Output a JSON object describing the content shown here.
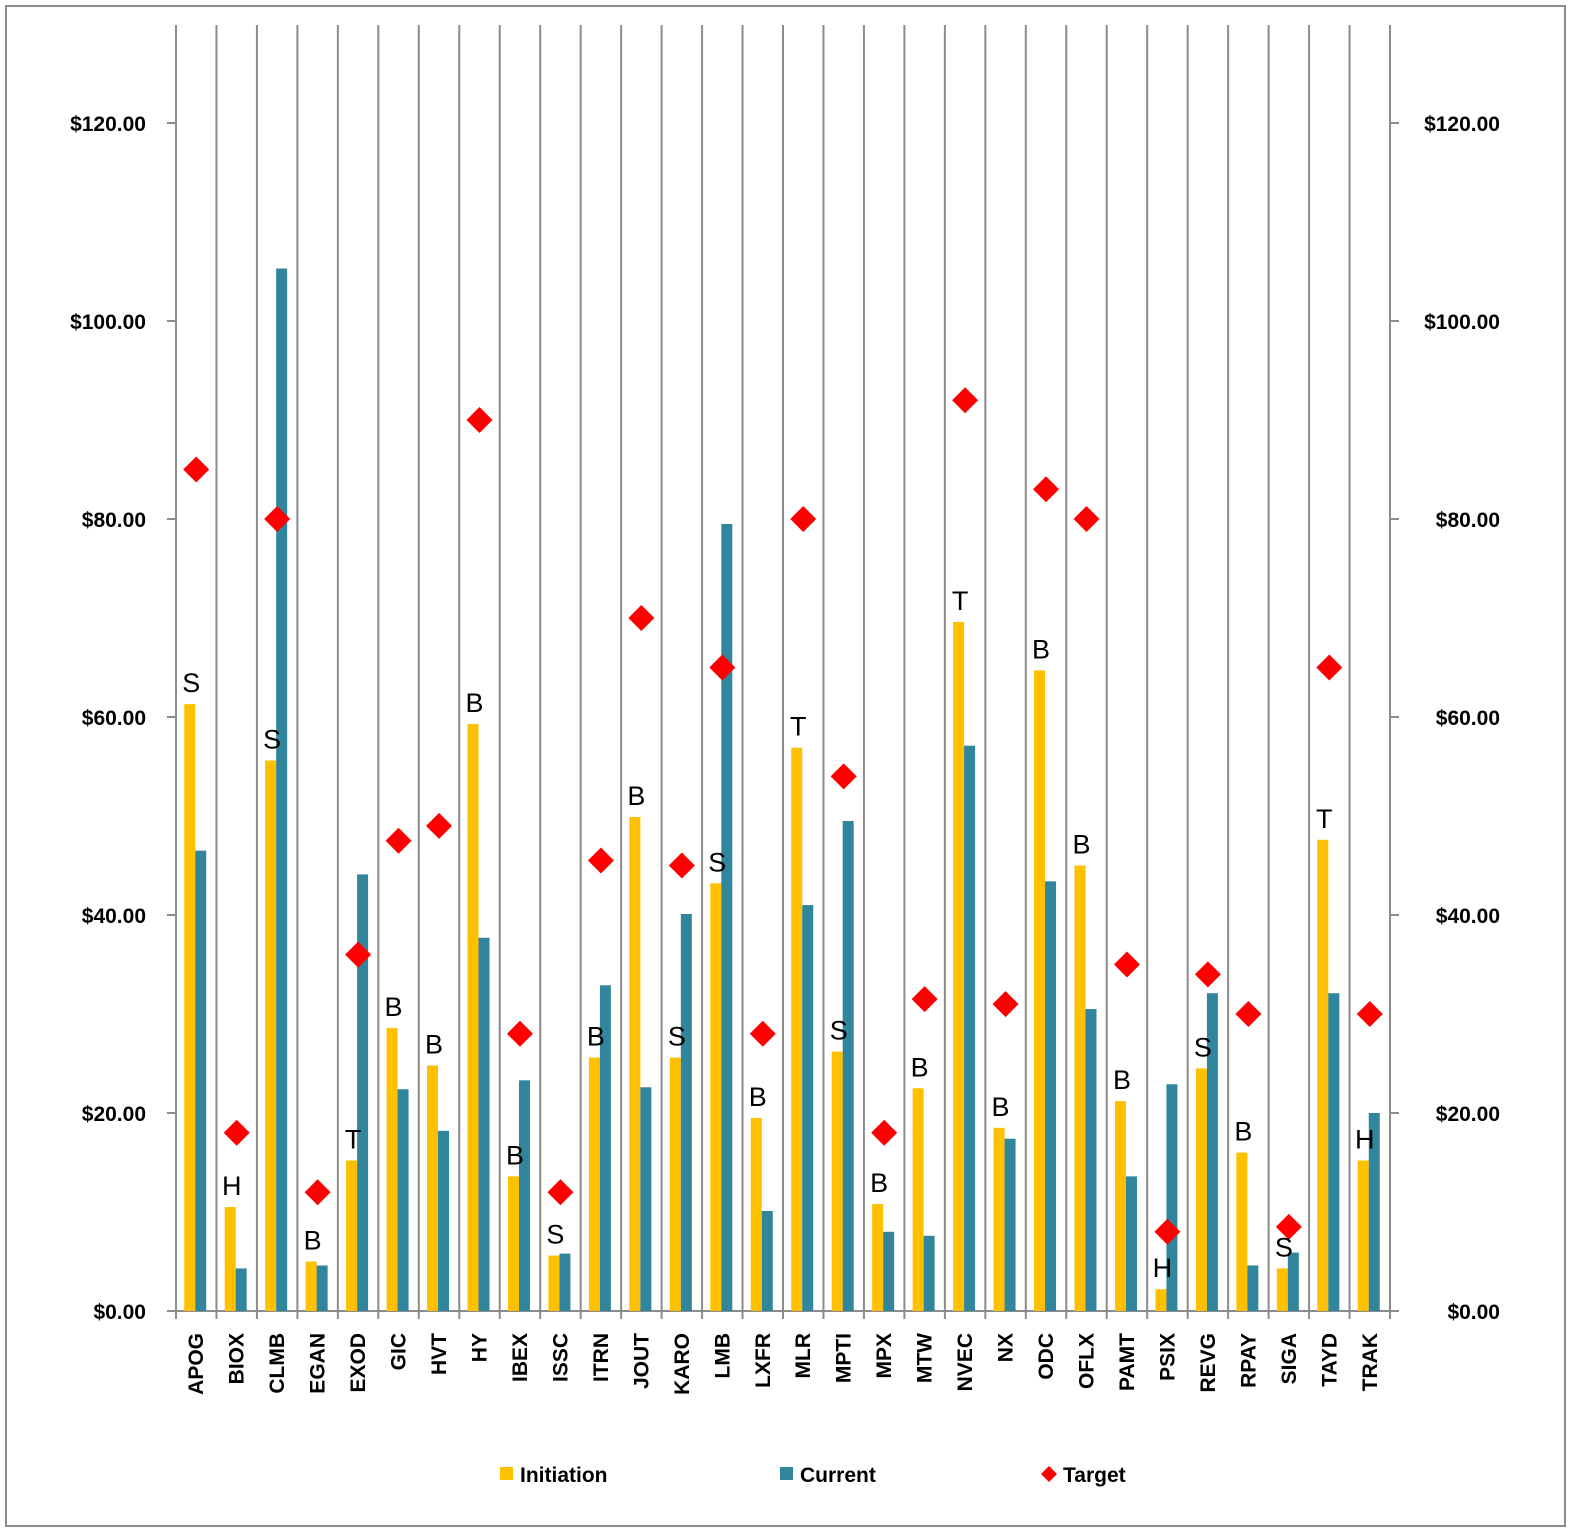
{
  "chart_data": {
    "type": "bar",
    "categories": [
      "APOG",
      "BIOX",
      "CLMB",
      "EGAN",
      "EXOD",
      "GIC",
      "HVT",
      "HY",
      "IBEX",
      "ISSC",
      "ITRN",
      "JOUT",
      "KARO",
      "LMB",
      "LXFR",
      "MLR",
      "MPTI",
      "MPX",
      "MTW",
      "NVEC",
      "NX",
      "ODC",
      "OFLX",
      "PAMT",
      "PSIX",
      "REVG",
      "RPAY",
      "SIGA",
      "TAYD",
      "TRAK"
    ],
    "series": [
      {
        "name": "Initiation",
        "kind": "bar",
        "color": "#ffc000",
        "values": [
          61.3,
          10.5,
          55.6,
          5.0,
          15.2,
          28.6,
          24.8,
          59.3,
          13.6,
          5.6,
          25.6,
          49.9,
          25.6,
          43.2,
          19.5,
          56.9,
          26.2,
          10.8,
          22.5,
          69.6,
          18.5,
          64.7,
          45.0,
          21.2,
          2.2,
          24.5,
          16.0,
          4.3,
          47.6,
          15.2
        ]
      },
      {
        "name": "Current",
        "kind": "bar",
        "color": "#31859c",
        "values": [
          46.5,
          4.3,
          105.3,
          4.6,
          44.1,
          22.4,
          18.2,
          37.7,
          23.3,
          5.8,
          32.9,
          22.6,
          40.1,
          79.5,
          10.1,
          41.0,
          49.5,
          8.0,
          7.6,
          57.1,
          17.4,
          43.4,
          30.5,
          13.6,
          22.9,
          32.1,
          4.6,
          5.9,
          32.1,
          20.0
        ]
      },
      {
        "name": "Target",
        "kind": "marker",
        "color": "#ff0000",
        "values": [
          85,
          18,
          80,
          12,
          36,
          47.5,
          49,
          90,
          28,
          12,
          45.5,
          70,
          45,
          65,
          28,
          80,
          54,
          18,
          31.5,
          92,
          31,
          83,
          80,
          35,
          8,
          34,
          30,
          8.5,
          65,
          30
        ]
      }
    ],
    "ratings": [
      "S",
      "H",
      "S",
      "B",
      "T",
      "B",
      "B",
      "B",
      "B",
      "S",
      "B",
      "B",
      "S",
      "S",
      "B",
      "T",
      "S",
      "B",
      "B",
      "T",
      "B",
      "B",
      "B",
      "B",
      "H",
      "S",
      "B",
      "S",
      "T",
      "H"
    ],
    "ylim": [
      0,
      130
    ],
    "yticks": [
      0,
      20,
      40,
      60,
      80,
      100,
      120
    ],
    "ytick_labels": [
      "$0.00",
      "$20.00",
      "$40.00",
      "$60.00",
      "$80.00",
      "$100.00",
      "$120.00"
    ],
    "secondary_axis": true,
    "grid": "vertical separators between categories",
    "legend_position": "bottom",
    "title": "",
    "xlabel": "",
    "ylabel": ""
  }
}
